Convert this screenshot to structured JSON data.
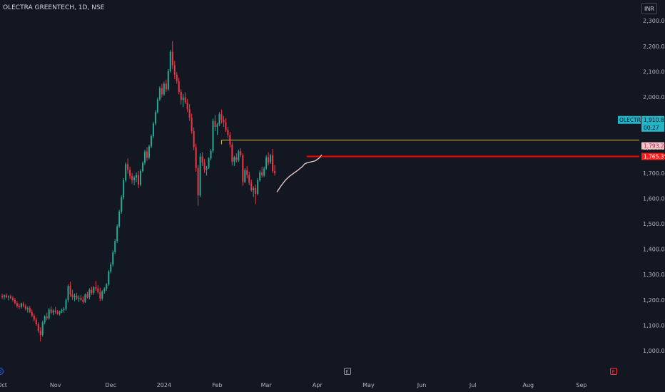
{
  "header": {
    "title": "OLECTRA GREENTECH, 1D, NSE",
    "currency": "INR"
  },
  "chart_data": {
    "type": "candlestick",
    "symbol": "OLECTRA",
    "interval": "1D",
    "exchange": "NSE",
    "ylim": [
      950,
      2320
    ],
    "yticks": [
      "2,300.00",
      "2,200.00",
      "2,100.00",
      "2,000.00",
      "1,900.00",
      "1,800.00",
      "1,700.00",
      "1,600.00",
      "1,500.00",
      "1,400.00",
      "1,300.00",
      "1,200.00",
      "1,100.00",
      "1,000.00"
    ],
    "ytick_values": [
      2300,
      2200,
      2100,
      2000,
      1900,
      1800,
      1700,
      1600,
      1500,
      1400,
      1300,
      1200,
      1100,
      1000
    ],
    "xticks": [
      "Oct",
      "Nov",
      "Dec",
      "2024",
      "Feb",
      "Mar",
      "Apr",
      "May",
      "Jun",
      "Jul",
      "Aug",
      "Sep"
    ],
    "xtick_index": [
      0,
      25,
      51,
      76,
      101,
      124,
      148,
      172,
      197,
      221,
      247,
      272
    ],
    "candles": [
      [
        1216,
        1224,
        1204,
        1212
      ],
      [
        1212,
        1222,
        1201,
        1218
      ],
      [
        1218,
        1226,
        1208,
        1210
      ],
      [
        1210,
        1218,
        1198,
        1214
      ],
      [
        1214,
        1221,
        1203,
        1207
      ],
      [
        1207,
        1215,
        1193,
        1200
      ],
      [
        1200,
        1208,
        1182,
        1188
      ],
      [
        1188,
        1196,
        1170,
        1176
      ],
      [
        1176,
        1186,
        1164,
        1172
      ],
      [
        1172,
        1189,
        1166,
        1186
      ],
      [
        1186,
        1192,
        1170,
        1175
      ],
      [
        1175,
        1183,
        1158,
        1164
      ],
      [
        1164,
        1174,
        1150,
        1168
      ],
      [
        1168,
        1176,
        1148,
        1152
      ],
      [
        1152,
        1162,
        1132,
        1138
      ],
      [
        1138,
        1146,
        1115,
        1122
      ],
      [
        1122,
        1130,
        1098,
        1104
      ],
      [
        1104,
        1112,
        1070,
        1078
      ],
      [
        1078,
        1092,
        1036,
        1062
      ],
      [
        1062,
        1118,
        1055,
        1112
      ],
      [
        1112,
        1140,
        1104,
        1135
      ],
      [
        1135,
        1150,
        1120,
        1128
      ],
      [
        1128,
        1168,
        1122,
        1162
      ],
      [
        1162,
        1175,
        1143,
        1150
      ],
      [
        1150,
        1164,
        1140,
        1158
      ],
      [
        1158,
        1172,
        1145,
        1151
      ],
      [
        1151,
        1160,
        1141,
        1146
      ],
      [
        1146,
        1158,
        1138,
        1155
      ],
      [
        1155,
        1166,
        1148,
        1160
      ],
      [
        1160,
        1172,
        1150,
        1165
      ],
      [
        1165,
        1205,
        1158,
        1200
      ],
      [
        1200,
        1262,
        1190,
        1255
      ],
      [
        1255,
        1272,
        1212,
        1222
      ],
      [
        1222,
        1240,
        1200,
        1210
      ],
      [
        1210,
        1225,
        1195,
        1216
      ],
      [
        1216,
        1228,
        1200,
        1205
      ],
      [
        1205,
        1218,
        1192,
        1208
      ],
      [
        1208,
        1220,
        1196,
        1200
      ],
      [
        1200,
        1214,
        1186,
        1192
      ],
      [
        1192,
        1226,
        1188,
        1222
      ],
      [
        1222,
        1232,
        1205,
        1210
      ],
      [
        1210,
        1246,
        1202,
        1240
      ],
      [
        1240,
        1252,
        1220,
        1228
      ],
      [
        1228,
        1255,
        1220,
        1250
      ],
      [
        1250,
        1275,
        1236,
        1245
      ],
      [
        1245,
        1258,
        1224,
        1230
      ],
      [
        1230,
        1248,
        1195,
        1205
      ],
      [
        1205,
        1238,
        1198,
        1234
      ],
      [
        1234,
        1250,
        1224,
        1244
      ],
      [
        1244,
        1266,
        1236,
        1262
      ],
      [
        1262,
        1318,
        1255,
        1312
      ],
      [
        1312,
        1348,
        1305,
        1340
      ],
      [
        1340,
        1395,
        1332,
        1388
      ],
      [
        1388,
        1440,
        1380,
        1432
      ],
      [
        1432,
        1498,
        1424,
        1490
      ],
      [
        1490,
        1555,
        1484,
        1548
      ],
      [
        1548,
        1612,
        1540,
        1604
      ],
      [
        1604,
        1680,
        1596,
        1672
      ],
      [
        1672,
        1742,
        1664,
        1735
      ],
      [
        1735,
        1758,
        1698,
        1712
      ],
      [
        1712,
        1725,
        1676,
        1688
      ],
      [
        1688,
        1700,
        1658,
        1672
      ],
      [
        1672,
        1690,
        1652,
        1682
      ],
      [
        1682,
        1702,
        1664,
        1692
      ],
      [
        1692,
        1708,
        1640,
        1654
      ],
      [
        1654,
        1715,
        1648,
        1708
      ],
      [
        1708,
        1746,
        1702,
        1740
      ],
      [
        1740,
        1792,
        1732,
        1785
      ],
      [
        1785,
        1802,
        1748,
        1760
      ],
      [
        1760,
        1812,
        1754,
        1805
      ],
      [
        1805,
        1852,
        1798,
        1845
      ],
      [
        1845,
        1902,
        1838,
        1895
      ],
      [
        1895,
        1948,
        1888,
        1940
      ],
      [
        1940,
        1998,
        1934,
        1990
      ],
      [
        1990,
        2042,
        1984,
        2035
      ],
      [
        2035,
        2052,
        1998,
        2010
      ],
      [
        2010,
        2060,
        2004,
        2052
      ],
      [
        2052,
        2068,
        2020,
        2030
      ],
      [
        2030,
        2110,
        2024,
        2102
      ],
      [
        2102,
        2185,
        2096,
        2178
      ],
      [
        2178,
        2220,
        2110,
        2125
      ],
      [
        2125,
        2142,
        2070,
        2088
      ],
      [
        2088,
        2098,
        2052,
        2062
      ],
      [
        2062,
        2075,
        2010,
        2020
      ],
      [
        2020,
        2030,
        1970,
        1988
      ],
      [
        1988,
        2012,
        1960,
        1998
      ],
      [
        1998,
        2018,
        1972,
        1978
      ],
      [
        1978,
        1992,
        1940,
        1952
      ],
      [
        1952,
        1972,
        1906,
        1918
      ],
      [
        1918,
        1934,
        1855,
        1865
      ],
      [
        1865,
        1880,
        1790,
        1802
      ],
      [
        1802,
        1815,
        1705,
        1720
      ],
      [
        1720,
        1732,
        1572,
        1612
      ],
      [
        1612,
        1778,
        1605,
        1765
      ],
      [
        1765,
        1782,
        1728,
        1742
      ],
      [
        1742,
        1756,
        1700,
        1714
      ],
      [
        1714,
        1728,
        1690,
        1722
      ],
      [
        1722,
        1762,
        1716,
        1758
      ],
      [
        1758,
        1795,
        1750,
        1788
      ],
      [
        1788,
        1915,
        1780,
        1905
      ],
      [
        1905,
        1928,
        1865,
        1882
      ],
      [
        1882,
        1898,
        1850,
        1892
      ],
      [
        1892,
        1940,
        1885,
        1932
      ],
      [
        1932,
        1950,
        1895,
        1910
      ],
      [
        1910,
        1925,
        1882,
        1900
      ],
      [
        1900,
        1916,
        1862,
        1870
      ],
      [
        1870,
        1882,
        1838,
        1850
      ],
      [
        1850,
        1862,
        1802,
        1812
      ],
      [
        1812,
        1822,
        1730,
        1745
      ],
      [
        1745,
        1768,
        1728,
        1762
      ],
      [
        1762,
        1778,
        1742,
        1750
      ],
      [
        1750,
        1792,
        1744,
        1786
      ],
      [
        1786,
        1798,
        1762,
        1770
      ],
      [
        1770,
        1778,
        1650,
        1665
      ],
      [
        1665,
        1720,
        1660,
        1712
      ],
      [
        1712,
        1728,
        1680,
        1692
      ],
      [
        1692,
        1705,
        1652,
        1662
      ],
      [
        1662,
        1674,
        1626,
        1632
      ],
      [
        1632,
        1648,
        1606,
        1640
      ],
      [
        1640,
        1655,
        1578,
        1618
      ],
      [
        1618,
        1680,
        1612,
        1672
      ],
      [
        1672,
        1710,
        1666,
        1702
      ],
      [
        1702,
        1725,
        1682,
        1690
      ],
      [
        1690,
        1725,
        1684,
        1718
      ],
      [
        1718,
        1770,
        1712,
        1762
      ],
      [
        1762,
        1782,
        1730,
        1742
      ],
      [
        1742,
        1776,
        1736,
        1770
      ],
      [
        1770,
        1795,
        1700,
        1708
      ],
      [
        1708,
        1732,
        1690,
        1700
      ]
    ],
    "resistance_line": {
      "value": 1830,
      "start_index": 103,
      "color": "#d4c23a"
    },
    "support_line": {
      "value": 1765.35,
      "start_index": 143,
      "color": "#ff0000"
    },
    "vwap": {
      "color": "#f5d0d0",
      "points": [
        [
          129,
          1625
        ],
        [
          131,
          1650
        ],
        [
          133,
          1672
        ],
        [
          135,
          1688
        ],
        [
          137,
          1700
        ],
        [
          139,
          1712
        ],
        [
          141,
          1726
        ],
        [
          142,
          1736
        ],
        [
          143,
          1740
        ],
        [
          145,
          1744
        ],
        [
          147,
          1748
        ],
        [
          149,
          1760
        ],
        [
          150,
          1772
        ]
      ]
    },
    "price_labels": [
      {
        "name": "OLECTRA",
        "value": "1,910.80",
        "countdown": "00:27",
        "price": 1910.8,
        "color": "#22b5c7"
      },
      {
        "value": "1,793.25",
        "price": 1793.25,
        "color": "#f5c6c6",
        "text_color": "#c2185b"
      },
      {
        "value": "1,765.35",
        "price": 1765.35,
        "color": "#ff1a1a",
        "text_color": "#ffffff"
      }
    ],
    "colors": {
      "up": "#22ab94",
      "down": "#f23645",
      "grid": "#1e222d",
      "axis_text": "#b2b5be",
      "background": "#131722"
    },
    "grid": false
  },
  "events": [
    {
      "label": "E",
      "index": 162
    },
    {
      "label": "E",
      "index": 287
    }
  ]
}
